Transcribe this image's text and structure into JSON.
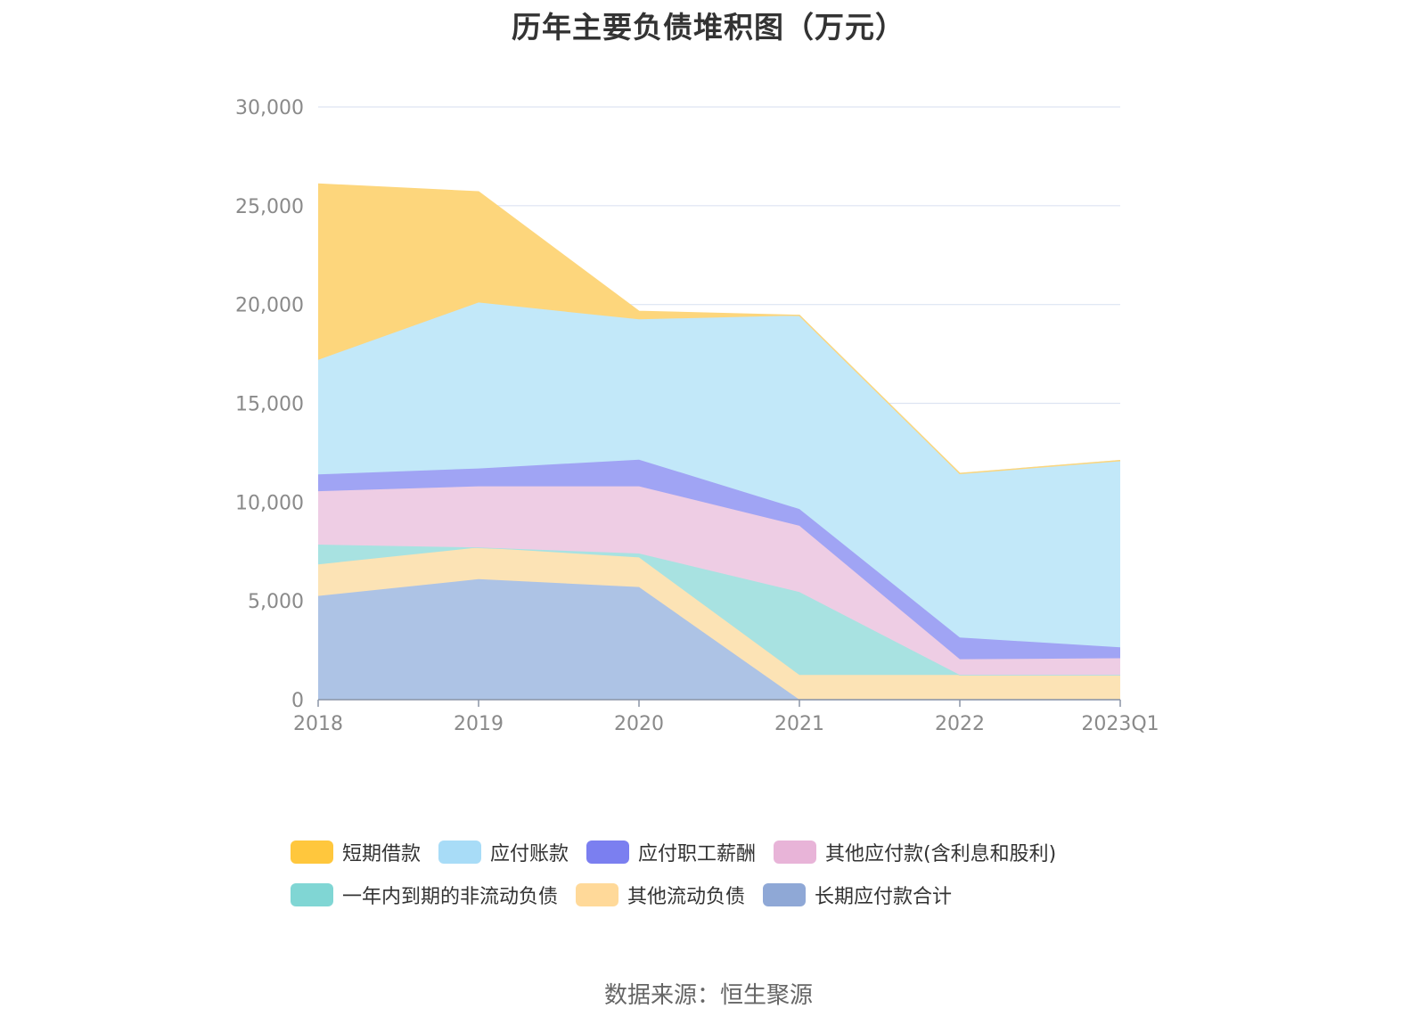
{
  "chart_data": {
    "type": "area",
    "stacked": true,
    "title": "历年主要负债堆积图（万元）",
    "categories": [
      "2018",
      "2019",
      "2020",
      "2021",
      "2022",
      "2023Q1"
    ],
    "y_ticks": [
      "0",
      "5,000",
      "10,000",
      "15,000",
      "20,000",
      "25,000",
      "30,000"
    ],
    "ylim": [
      0,
      30000
    ],
    "series": [
      {
        "name": "长期应付款合计",
        "color": "#8fa8d6",
        "fill": "#adc3e5",
        "values": [
          5250,
          6100,
          5700,
          0,
          0,
          0
        ]
      },
      {
        "name": "其他流动负债",
        "color": "#ffd999",
        "fill": "#fce3b5",
        "values": [
          1600,
          1600,
          1500,
          1250,
          1250,
          1250
        ]
      },
      {
        "name": "一年内到期的非流动负债",
        "color": "#80d6d4",
        "fill": "#a8e2e1",
        "values": [
          1000,
          0,
          200,
          4200,
          0,
          0
        ]
      },
      {
        "name": "其他应付款(含利息和股利)",
        "color": "#e8b4d8",
        "fill": "#eecde4",
        "values": [
          2700,
          3100,
          3400,
          3350,
          800,
          850
        ]
      },
      {
        "name": "应付职工薪酬",
        "color": "#7b7ff0",
        "fill": "#a0a4f4",
        "values": [
          850,
          900,
          1350,
          850,
          1100,
          550
        ]
      },
      {
        "name": "应付账款",
        "color": "#a8dcf7",
        "fill": "#c2e8f9",
        "values": [
          5800,
          8400,
          7100,
          9800,
          8300,
          9450
        ]
      },
      {
        "name": "短期借款",
        "color": "#ffc73d",
        "fill": "#fdd67c",
        "values": [
          8900,
          5600,
          400,
          0,
          0,
          0
        ]
      }
    ],
    "legend_rows": [
      [
        "短期借款",
        "应付账款",
        "应付职工薪酬",
        "其他应付款(含利息和股利)"
      ],
      [
        "一年内到期的非流动负债",
        "其他流动负债",
        "长期应付款合计"
      ]
    ],
    "legend_position": "bottom"
  },
  "source": "数据来源：恒生聚源"
}
